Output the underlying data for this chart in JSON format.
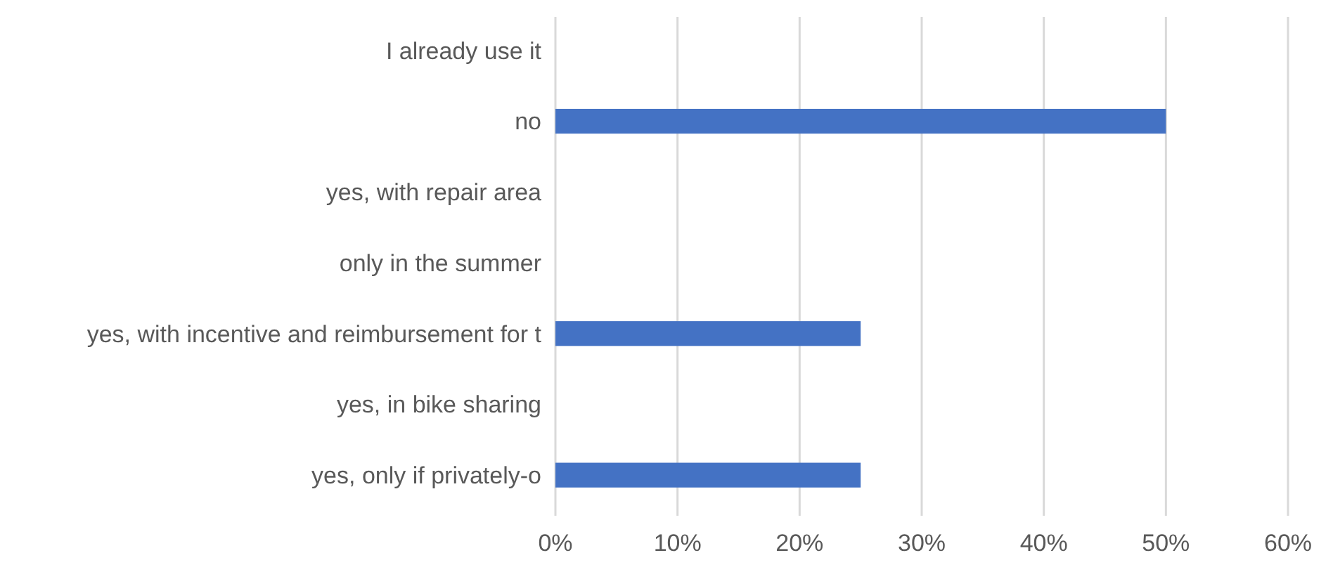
{
  "chart_data": {
    "type": "bar",
    "orientation": "horizontal",
    "categories": [
      "I already use it",
      "no",
      "yes, with repair area",
      "only in the summer",
      "yes, with incentive and reimbursement for t",
      "yes, in bike sharing",
      "yes, only if privately-o"
    ],
    "values": [
      0,
      50,
      0,
      0,
      25,
      0,
      25
    ],
    "color": "#4472c4",
    "xlim": [
      0,
      60
    ],
    "xticks": [
      {
        "value": 0,
        "label": "0%"
      },
      {
        "value": 10,
        "label": "10%"
      },
      {
        "value": 20,
        "label": "20%"
      },
      {
        "value": 30,
        "label": "30%"
      },
      {
        "value": 40,
        "label": "40%"
      },
      {
        "value": 50,
        "label": "50%"
      },
      {
        "value": 60,
        "label": "60%"
      }
    ],
    "grid": "x"
  }
}
